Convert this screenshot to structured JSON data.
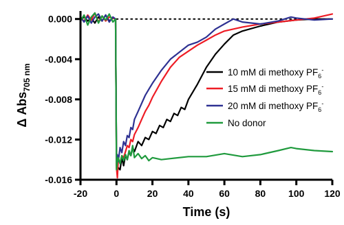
{
  "chart_data": {
    "type": "line",
    "xlabel": "Time (s)",
    "ylabel": {
      "prefix": "Δ Abs",
      "subscript": "705 nm"
    },
    "xlim": [
      -20,
      120
    ],
    "ylim": [
      -0.016,
      0.0008
    ],
    "xticks": [
      "-20",
      "0",
      "20",
      "40",
      "60",
      "80",
      "100",
      "120"
    ],
    "yticks": [
      "0.000",
      "-0.004",
      "-0.008",
      "-0.012",
      "-0.016"
    ],
    "reference_line": {
      "y": 0,
      "style": "dotted"
    },
    "legend_placement": "right",
    "series": [
      {
        "name": "10 mM di methoxy PF6-",
        "legend": {
          "text": "10 mM di methoxy PF",
          "sub": "6",
          "sup": "-"
        },
        "color": "#000000",
        "x": [
          -20,
          -18,
          -16,
          -14,
          -12,
          -10,
          -8,
          -6,
          -4,
          -2,
          -0.5,
          0,
          0.5,
          1,
          2,
          3,
          4,
          5,
          6,
          7,
          8,
          9,
          10,
          12,
          14,
          16,
          18,
          20,
          22,
          24,
          26,
          28,
          30,
          32,
          34,
          36,
          38,
          40,
          45,
          50,
          55,
          60,
          65,
          70,
          80,
          90,
          100,
          110,
          120
        ],
        "y": [
          -0.0001,
          0.0002,
          -0.0002,
          0.0001,
          -0.0004,
          0.0002,
          -0.0002,
          0.0004,
          -0.0002,
          0.0001,
          0.0,
          -0.0145,
          -0.0152,
          -0.0148,
          -0.015,
          -0.0138,
          -0.0146,
          -0.0135,
          -0.014,
          -0.0132,
          -0.0136,
          -0.0128,
          -0.0132,
          -0.0122,
          -0.0126,
          -0.0118,
          -0.012,
          -0.0112,
          -0.0114,
          -0.0106,
          -0.0108,
          -0.01,
          -0.0102,
          -0.0094,
          -0.0096,
          -0.0088,
          -0.009,
          -0.008,
          -0.0065,
          -0.0048,
          -0.0035,
          -0.0025,
          -0.0016,
          -0.0012,
          -0.0007,
          -0.0003,
          -0.0001,
          0.0,
          0.0
        ]
      },
      {
        "name": "15 mM di methoxy PF6-",
        "legend": {
          "text": "15 mM di methoxy PF",
          "sub": "6",
          "sup": "-"
        },
        "color": "#ee1c25",
        "x": [
          -20,
          -18,
          -16,
          -14,
          -12,
          -10,
          -8,
          -6,
          -4,
          -2,
          -0.5,
          0,
          0.5,
          1,
          2,
          3,
          4,
          5,
          6,
          7,
          8,
          9,
          10,
          12,
          14,
          16,
          18,
          20,
          25,
          30,
          35,
          40,
          45,
          50,
          55,
          60,
          70,
          80,
          90,
          100,
          110,
          120
        ],
        "y": [
          0.0001,
          -0.0002,
          0.0004,
          -0.0001,
          0.0006,
          -0.0003,
          0.0003,
          -0.0002,
          0.0002,
          0.0001,
          0.0,
          -0.0148,
          -0.0158,
          -0.014,
          -0.0143,
          -0.0136,
          -0.0138,
          -0.0132,
          -0.0126,
          -0.0128,
          -0.012,
          -0.0122,
          -0.0115,
          -0.0108,
          -0.01,
          -0.0092,
          -0.0086,
          -0.0078,
          -0.0062,
          -0.0048,
          -0.0038,
          -0.0032,
          -0.0026,
          -0.0021,
          -0.0016,
          -0.0012,
          -0.0008,
          -0.0005,
          -0.0003,
          -0.0001,
          0.0001,
          0.0005
        ]
      },
      {
        "name": "20 mM di methoxy PF6-",
        "legend": {
          "text": "20 mM di methoxy PF",
          "sub": "6",
          "sup": "-"
        },
        "color": "#2e3192",
        "x": [
          -20,
          -18,
          -16,
          -14,
          -12,
          -10,
          -8,
          -6,
          -4,
          -2,
          -0.5,
          0,
          0.5,
          1,
          2,
          3,
          4,
          5,
          6,
          7,
          8,
          9,
          10,
          12,
          14,
          16,
          18,
          20,
          25,
          30,
          35,
          40,
          45,
          50,
          55,
          60,
          65,
          70,
          80,
          90,
          97,
          100,
          110,
          120
        ],
        "y": [
          0.0002,
          -0.0003,
          0.0003,
          -0.0004,
          0.0002,
          0.0005,
          -0.0002,
          0.0004,
          -0.0003,
          0.0002,
          0.0,
          -0.014,
          -0.0135,
          -0.0142,
          -0.0128,
          -0.0133,
          -0.0122,
          -0.0126,
          -0.0116,
          -0.0118,
          -0.0108,
          -0.011,
          -0.01,
          -0.0092,
          -0.0084,
          -0.0076,
          -0.007,
          -0.0064,
          -0.0051,
          -0.004,
          -0.0033,
          -0.0026,
          -0.0023,
          -0.0018,
          -0.001,
          -0.0005,
          0.0,
          -0.0003,
          -0.0005,
          -0.0002,
          0.0002,
          0.0001,
          -0.0001,
          0.0
        ]
      },
      {
        "name": "No donor",
        "legend": {
          "text": "No donor",
          "sub": "",
          "sup": ""
        },
        "color": "#1f9a3d",
        "x": [
          -20,
          -18,
          -16,
          -14,
          -12,
          -10,
          -8,
          -6,
          -4,
          -2,
          -0.5,
          0,
          0.5,
          1,
          2,
          3,
          4,
          5,
          6,
          7,
          8,
          9,
          10,
          12,
          14,
          16,
          18,
          20,
          25,
          30,
          40,
          50,
          60,
          70,
          80,
          90,
          97,
          100,
          110,
          120
        ],
        "y": [
          -0.0002,
          0.0004,
          -0.0006,
          0.0002,
          0.0006,
          -0.0004,
          0.0003,
          -0.0001,
          0.0005,
          -0.0003,
          0.0,
          -0.015,
          -0.0142,
          -0.0138,
          -0.0144,
          -0.0136,
          -0.0141,
          -0.0135,
          -0.014,
          -0.0131,
          -0.0136,
          -0.0126,
          -0.0138,
          -0.0134,
          -0.0139,
          -0.0136,
          -0.0141,
          -0.0138,
          -0.014,
          -0.0139,
          -0.0137,
          -0.0137,
          -0.0134,
          -0.0137,
          -0.0135,
          -0.0131,
          -0.0128,
          -0.0129,
          -0.0131,
          -0.0132
        ]
      }
    ]
  }
}
